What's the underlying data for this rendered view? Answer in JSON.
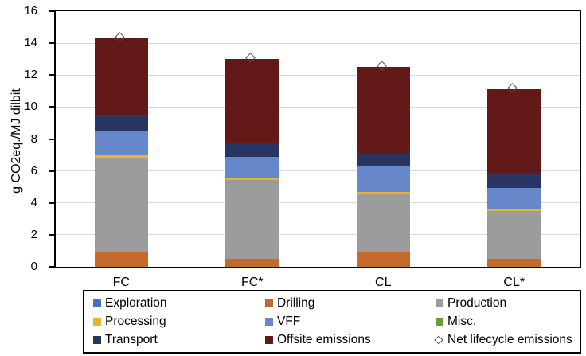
{
  "chart_data": {
    "type": "bar",
    "stacked": true,
    "title": "",
    "xlabel": "",
    "ylabel": "g CO2eq./MJ dilbit",
    "ylim": [
      0,
      16
    ],
    "ytick_step": 2,
    "grid": "horizontal",
    "gridline_color": "#d9d9d9",
    "legend_position": "bottom-boxed",
    "categories": [
      "FC",
      "FC*",
      "CL",
      "CL*"
    ],
    "series": [
      {
        "name": "Exploration",
        "color": "#4472c4",
        "values": [
          0,
          0,
          0,
          0
        ]
      },
      {
        "name": "Drilling",
        "color": "#c56a2d",
        "values": [
          0.9,
          0.5,
          0.9,
          0.5
        ]
      },
      {
        "name": "Production",
        "color": "#9c9c9c",
        "values": [
          5.9,
          4.95,
          3.65,
          3.0
        ]
      },
      {
        "name": "Processing",
        "color": "#e9b32a",
        "values": [
          0.2,
          0.1,
          0.15,
          0.15
        ]
      },
      {
        "name": "VFF",
        "color": "#6687c9",
        "values": [
          1.5,
          1.35,
          1.6,
          1.3
        ]
      },
      {
        "name": "Misc.",
        "color": "#67a03a",
        "values": [
          0,
          0,
          0,
          0
        ]
      },
      {
        "name": "Transport",
        "color": "#293561",
        "values": [
          1.0,
          0.85,
          0.85,
          0.9
        ]
      },
      {
        "name": "Offsite emissions",
        "color": "#641919",
        "values": [
          4.8,
          5.25,
          5.35,
          5.25
        ]
      }
    ],
    "marker_series": {
      "name": "Net lifecycle emissions",
      "symbol": "open-diamond",
      "outline_color": "#4d4d4d",
      "values": [
        14.3,
        13.0,
        12.5,
        11.1
      ]
    }
  }
}
